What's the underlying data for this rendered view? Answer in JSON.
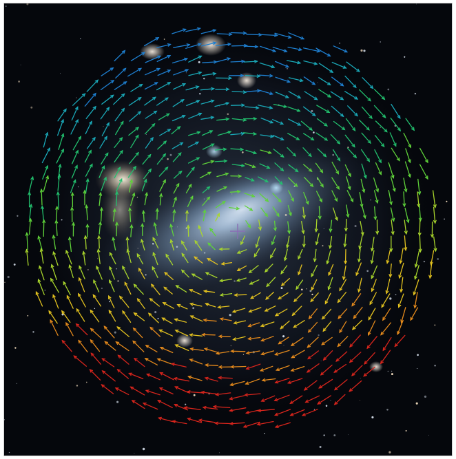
{
  "figure": {
    "description_free": true,
    "background": "#05070c",
    "galaxy_glow": "#bcd2ea",
    "nebula_glow": "#efe6cf",
    "center_marker_color": "#8a6db5",
    "arrow_palette": [
      "#1e7fd0",
      "#1aa9b8",
      "#22c06e",
      "#5fd23a",
      "#a9d62c",
      "#e3c21f",
      "#e58a1c",
      "#d8251c"
    ]
  }
}
